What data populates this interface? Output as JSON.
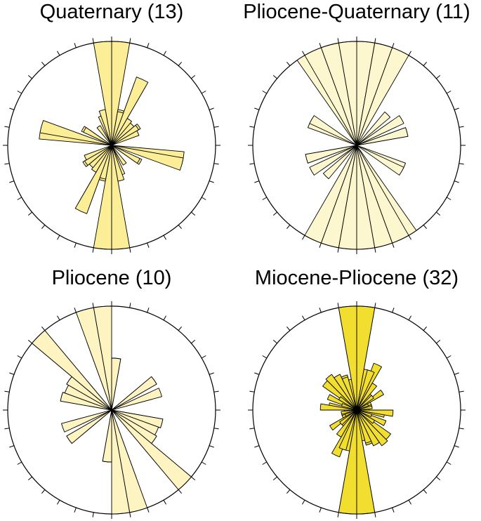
{
  "chart_data": [
    {
      "type": "rose",
      "title": "Quaternary (13)",
      "angular_unit": "degrees azimuth (0 = north, clockwise)",
      "bin_width": 10,
      "rmax": 1.0,
      "fill": "#fbee96",
      "tick_step": 10,
      "petals": [
        {
          "az": 5,
          "r": 1.0
        },
        {
          "az": 15,
          "r": 0.35
        },
        {
          "az": 25,
          "r": 0.65
        },
        {
          "az": 35,
          "r": 0.3
        },
        {
          "az": 45,
          "r": 0.28
        },
        {
          "az": 55,
          "r": 0.32
        },
        {
          "az": 100,
          "r": 0.7
        },
        {
          "az": 120,
          "r": 0.32
        },
        {
          "az": 145,
          "r": 0.22
        },
        {
          "az": 160,
          "r": 0.3
        },
        {
          "az": 175,
          "r": 1.0
        },
        {
          "az": 195,
          "r": 0.33
        },
        {
          "az": 205,
          "r": 0.7
        },
        {
          "az": 235,
          "r": 0.3
        },
        {
          "az": 245,
          "r": 0.28
        },
        {
          "az": 285,
          "r": 0.7
        },
        {
          "az": 300,
          "r": 0.3
        },
        {
          "az": 345,
          "r": 0.35
        }
      ]
    },
    {
      "type": "rose",
      "title": "Pliocene-Quaternary (11)",
      "angular_unit": "degrees azimuth (0 = north, clockwise)",
      "bin_width": 10,
      "rmax": 1.0,
      "fill": "#fdf7cf",
      "tick_step": 10,
      "petals": [
        {
          "az": 5,
          "r": 1.0
        },
        {
          "az": 15,
          "r": 1.0
        },
        {
          "az": 45,
          "r": 0.42
        },
        {
          "az": 60,
          "r": 0.42
        },
        {
          "az": 75,
          "r": 0.5
        },
        {
          "az": 115,
          "r": 0.5
        },
        {
          "az": 150,
          "r": 1.0
        },
        {
          "az": 165,
          "r": 1.0
        },
        {
          "az": 175,
          "r": 1.0
        },
        {
          "az": 195,
          "r": 1.0
        },
        {
          "az": 205,
          "r": 1.0
        },
        {
          "az": 240,
          "r": 0.5
        },
        {
          "az": 255,
          "r": 0.5
        },
        {
          "az": 300,
          "r": 0.5
        },
        {
          "az": 335,
          "r": 1.0
        },
        {
          "az": 345,
          "r": 1.0
        }
      ]
    },
    {
      "type": "rose",
      "title": "Pliocene (10)",
      "angular_unit": "degrees azimuth (0 = north, clockwise)",
      "bin_width": 10,
      "rmax": 1.0,
      "fill": "#fdf4c2",
      "tick_step": 10,
      "petals": [
        {
          "az": 5,
          "r": 0.5
        },
        {
          "az": 55,
          "r": 0.5
        },
        {
          "az": 70,
          "r": 0.4
        },
        {
          "az": 105,
          "r": 0.5
        },
        {
          "az": 125,
          "r": 0.5
        },
        {
          "az": 135,
          "r": 1.0
        },
        {
          "az": 165,
          "r": 0.7
        },
        {
          "az": 175,
          "r": 1.0
        },
        {
          "az": 185,
          "r": 0.5
        },
        {
          "az": 235,
          "r": 0.5
        },
        {
          "az": 250,
          "r": 0.5
        },
        {
          "az": 285,
          "r": 0.5
        },
        {
          "az": 295,
          "r": 0.48
        },
        {
          "az": 305,
          "r": 0.5
        },
        {
          "az": 315,
          "r": 1.0
        },
        {
          "az": 345,
          "r": 1.0
        }
      ]
    },
    {
      "type": "rose",
      "title": "Miocene-Pliocene (32)",
      "angular_unit": "degrees azimuth (0 = north, clockwise)",
      "bin_width": 10,
      "rmax": 1.0,
      "fill": "#f2de2e",
      "tick_step": 10,
      "petals": [
        {
          "az": 5,
          "r": 1.0
        },
        {
          "az": 15,
          "r": 0.4
        },
        {
          "az": 25,
          "r": 0.48
        },
        {
          "az": 35,
          "r": 0.22
        },
        {
          "az": 45,
          "r": 0.2
        },
        {
          "az": 55,
          "r": 0.3
        },
        {
          "az": 65,
          "r": 0.15
        },
        {
          "az": 75,
          "r": 0.15
        },
        {
          "az": 85,
          "r": 0.12
        },
        {
          "az": 100,
          "r": 0.27
        },
        {
          "az": 115,
          "r": 0.3
        },
        {
          "az": 130,
          "r": 0.4
        },
        {
          "az": 145,
          "r": 0.35
        },
        {
          "az": 160,
          "r": 0.35
        },
        {
          "az": 175,
          "r": 1.0
        },
        {
          "az": 185,
          "r": 1.0
        },
        {
          "az": 200,
          "r": 0.4
        },
        {
          "az": 215,
          "r": 0.3
        },
        {
          "az": 230,
          "r": 0.2
        },
        {
          "az": 245,
          "r": 0.12
        },
        {
          "az": 260,
          "r": 0.15
        },
        {
          "az": 275,
          "r": 0.35
        },
        {
          "az": 290,
          "r": 0.15
        },
        {
          "az": 305,
          "r": 0.2
        },
        {
          "az": 320,
          "r": 0.42
        },
        {
          "az": 330,
          "r": 0.38
        },
        {
          "az": 340,
          "r": 0.33
        },
        {
          "az": 350,
          "r": 0.3
        },
        {
          "az": 355,
          "r": 1.0
        }
      ]
    }
  ]
}
